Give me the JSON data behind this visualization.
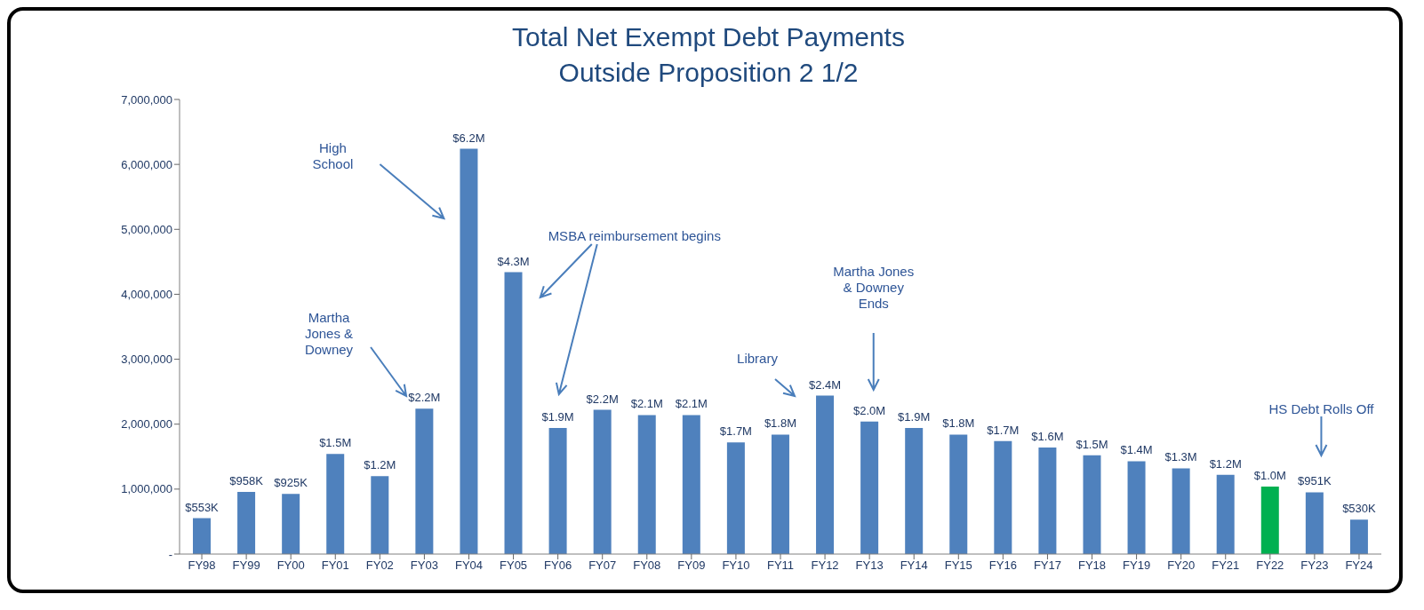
{
  "chart_data": {
    "type": "bar",
    "title": "Total Net Exempt Debt Payments\nOutside Proposition 2 1/2",
    "categories": [
      "FY98",
      "FY99",
      "FY00",
      "FY01",
      "FY02",
      "FY03",
      "FY04",
      "FY05",
      "FY06",
      "FY07",
      "FY08",
      "FY09",
      "FY10",
      "FY11",
      "FY12",
      "FY13",
      "FY14",
      "FY15",
      "FY16",
      "FY17",
      "FY18",
      "FY19",
      "FY20",
      "FY21",
      "FY22",
      "FY23",
      "FY24"
    ],
    "values": [
      553000,
      958000,
      925000,
      1540000,
      1200000,
      2240000,
      6240000,
      4340000,
      1940000,
      2220000,
      2140000,
      2140000,
      1720000,
      1840000,
      2440000,
      2040000,
      1940000,
      1840000,
      1740000,
      1640000,
      1520000,
      1430000,
      1320000,
      1220000,
      1040000,
      951000,
      530000
    ],
    "value_labels": [
      "$553K",
      "$958K",
      "$925K",
      "$1.5M",
      "$1.2M",
      "$2.2M",
      "$6.2M",
      "$4.3M",
      "$1.9M",
      "$2.2M",
      "$2.1M",
      "$2.1M",
      "$1.7M",
      "$1.8M",
      "$2.4M",
      "$2.0M",
      "$1.9M",
      "$1.8M",
      "$1.7M",
      "$1.6M",
      "$1.5M",
      "$1.4M",
      "$1.3M",
      "$1.2M",
      "$1.0M",
      "$951K",
      "$530K"
    ],
    "colors": [
      "#4f81bd",
      "#4f81bd",
      "#4f81bd",
      "#4f81bd",
      "#4f81bd",
      "#4f81bd",
      "#4f81bd",
      "#4f81bd",
      "#4f81bd",
      "#4f81bd",
      "#4f81bd",
      "#4f81bd",
      "#4f81bd",
      "#4f81bd",
      "#4f81bd",
      "#4f81bd",
      "#4f81bd",
      "#4f81bd",
      "#4f81bd",
      "#4f81bd",
      "#4f81bd",
      "#4f81bd",
      "#4f81bd",
      "#4f81bd",
      "#00b050",
      "#4f81bd",
      "#4f81bd"
    ],
    "ylim": [
      0,
      7000000
    ],
    "yticks": [
      {
        "value": 0,
        "label": "-"
      },
      {
        "value": 1000000,
        "label": "1,000,000"
      },
      {
        "value": 2000000,
        "label": "2,000,000"
      },
      {
        "value": 3000000,
        "label": "3,000,000"
      },
      {
        "value": 4000000,
        "label": "4,000,000"
      },
      {
        "value": 5000000,
        "label": "5,000,000"
      },
      {
        "value": 6000000,
        "label": "6,000,000"
      },
      {
        "value": 7000000,
        "label": "7,000,000"
      }
    ],
    "grid": false,
    "legend": false,
    "annotations": [
      "High School",
      "Martha Jones & Downey",
      "MSBA reimbursement begins",
      "Library",
      "Martha Jones & Downey Ends",
      "HS Debt Rolls Off"
    ]
  }
}
